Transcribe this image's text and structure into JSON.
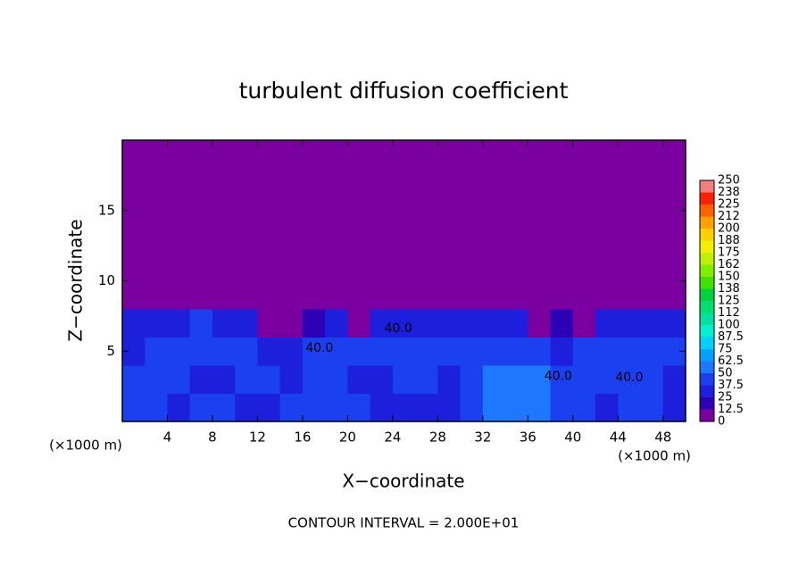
{
  "chart_data": {
    "type": "heatmap",
    "title": "turbulent diffusion coefficient",
    "x_label": "X−coordinate",
    "y_label": "Z−coordinate",
    "axis_units": [
      "(×1000 m)",
      "(×1000 m)"
    ],
    "footnote": "CONTOUR INTERVAL = 2.000E+01",
    "xlim": [
      0,
      50
    ],
    "ylim": [
      0,
      20
    ],
    "xticks": [
      4,
      8,
      12,
      16,
      20,
      24,
      28,
      32,
      36,
      40,
      44,
      48
    ],
    "yticks": [
      5,
      10,
      15
    ],
    "levels": [
      0,
      12.5,
      25,
      37.5,
      50,
      62.5,
      75,
      87.5,
      100,
      112,
      125,
      138,
      150,
      162,
      175,
      188,
      200,
      212,
      225,
      238,
      250
    ],
    "colors": [
      "#7a00a0",
      "#2c00b4",
      "#1c20dc",
      "#1a40f0",
      "#1e78ff",
      "#00a0ff",
      "#00d0ff",
      "#00f0d0",
      "#00e0a0",
      "#00e070",
      "#00d040",
      "#40e000",
      "#80f000",
      "#c0f000",
      "#f0f000",
      "#ffd000",
      "#ffa000",
      "#ff6000",
      "#ff2000",
      "#f08080"
    ],
    "z": [
      [
        40,
        45,
        35,
        40,
        38,
        30,
        35,
        42,
        40,
        38,
        40,
        30,
        28,
        30,
        32,
        40,
        55,
        60,
        50,
        40,
        38,
        35,
        40,
        38,
        35
      ],
      [
        38,
        42,
        40,
        35,
        30,
        45,
        38,
        35,
        40,
        45,
        30,
        32,
        40,
        45,
        35,
        40,
        50,
        62,
        55,
        42,
        40,
        45,
        40,
        38,
        35
      ],
      [
        35,
        40,
        45,
        40,
        38,
        40,
        30,
        35,
        42,
        38,
        40,
        45,
        38,
        42,
        40,
        45,
        40,
        45,
        40,
        35,
        38,
        40,
        42,
        40,
        38
      ],
      [
        30,
        32,
        35,
        38,
        30,
        28,
        0,
        0,
        20,
        30,
        0,
        25,
        35,
        30,
        35,
        25,
        28,
        30,
        0,
        20,
        0,
        28,
        25,
        30,
        35
      ],
      [
        0,
        0,
        0,
        0,
        0,
        0,
        0,
        0,
        0,
        0,
        0,
        0,
        0,
        0,
        0,
        0,
        0,
        0,
        0,
        0,
        0,
        0,
        0,
        0,
        0
      ],
      [
        0,
        0,
        0,
        0,
        0,
        0,
        0,
        0,
        0,
        0,
        0,
        0,
        0,
        0,
        0,
        0,
        0,
        0,
        0,
        0,
        0,
        0,
        0,
        0,
        0
      ],
      [
        0,
        0,
        0,
        0,
        0,
        0,
        0,
        0,
        0,
        0,
        0,
        0,
        0,
        0,
        0,
        0,
        0,
        0,
        0,
        0,
        0,
        0,
        0,
        0,
        0
      ],
      [
        0,
        0,
        0,
        0,
        0,
        0,
        0,
        0,
        0,
        0,
        0,
        0,
        0,
        0,
        0,
        0,
        0,
        0,
        0,
        0,
        0,
        0,
        0,
        0,
        0
      ],
      [
        0,
        0,
        0,
        0,
        0,
        0,
        0,
        0,
        0,
        0,
        0,
        0,
        0,
        0,
        0,
        0,
        0,
        0,
        0,
        0,
        0,
        0,
        0,
        0,
        0
      ],
      [
        0,
        0,
        0,
        0,
        0,
        0,
        0,
        0,
        0,
        0,
        0,
        0,
        0,
        0,
        0,
        0,
        0,
        0,
        0,
        0,
        0,
        0,
        0,
        0,
        0
      ]
    ],
    "contour_labels": [
      {
        "text": "40.0",
        "x": 24.5,
        "y": 6.6
      },
      {
        "text": "40.0",
        "x": 17.5,
        "y": 5.2
      },
      {
        "text": "40.0",
        "x": 38.7,
        "y": 3.2
      },
      {
        "text": "40.0",
        "x": 45,
        "y": 3.1
      }
    ]
  }
}
